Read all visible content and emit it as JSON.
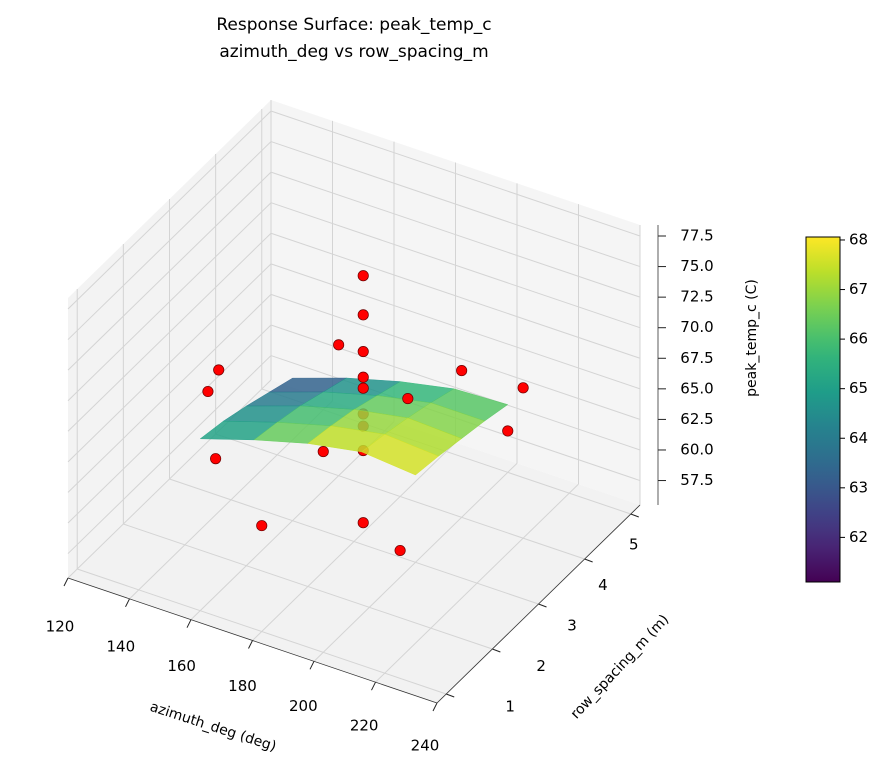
{
  "chart_data": {
    "type": "surface3d",
    "title": "Response Surface: peak_temp_c",
    "subtitle": "azimuth_deg vs row_spacing_m",
    "xlabel": "azimuth_deg (deg)",
    "ylabel": "row_spacing_m (m)",
    "zlabel": "peak_temp_c (C)",
    "xlim": [
      120,
      240
    ],
    "xticks": [
      120,
      140,
      160,
      180,
      200,
      220,
      240
    ],
    "ylim": [
      0.8,
      5.2
    ],
    "yticks": [
      1,
      2,
      3,
      4,
      5
    ],
    "zlim": [
      55.5,
      78.4
    ],
    "zticks": [
      57.5,
      {
        "value": 60,
        "label": "60.0"
      },
      62.5,
      {
        "value": 65,
        "label": "65.0"
      },
      67.5,
      {
        "value": 70,
        "label": "70.0"
      },
      72.5,
      {
        "value": 75,
        "label": "75.0"
      },
      77.5
    ],
    "grid": true,
    "pane_color": "#f2f2f2",
    "grid_color": "#d4d4d4",
    "surface": {
      "x": [
        145,
        162.5,
        180,
        197.5,
        215
      ],
      "y": [
        2,
        2.5,
        3,
        3.5,
        4
      ],
      "z": [
        [
          64.6,
          66.0,
          67.2,
          68.0,
          67.6
        ],
        [
          64.2,
          65.6,
          66.8,
          67.6,
          67.3
        ],
        [
          63.6,
          65.1,
          66.3,
          67.1,
          66.9
        ],
        [
          62.9,
          64.4,
          65.6,
          66.5,
          66.5
        ],
        [
          62.2,
          63.7,
          64.9,
          65.8,
          66.0
        ]
      ],
      "colormap": "viridis",
      "alpha": 0.85
    },
    "scatter": {
      "x": [
        180,
        180,
        180,
        180,
        180,
        180,
        180,
        180,
        180,
        160,
        130,
        140,
        150,
        165,
        170,
        190,
        210,
        200,
        220,
        230
      ],
      "y": [
        3.2,
        3.2,
        3.2,
        3.2,
        3.2,
        3.2,
        3.2,
        3.2,
        3.2,
        4,
        3.4,
        2.5,
        2,
        2,
        3,
        3.5,
        2,
        4,
        4,
        3
      ],
      "z": [
        76.5,
        73.3,
        70.3,
        68.2,
        67.3,
        65.2,
        64.2,
        62.2,
        56.3,
        66.2,
        63.8,
        66.2,
        63.4,
        59.2,
        62.0,
        66.2,
        61.0,
        67.5,
        67.8,
        68.8
      ],
      "color": "#ff0000",
      "edgecolor": "#6e0000"
    },
    "colorbar": {
      "clim": [
        61.1,
        68.06
      ],
      "ticks": [
        62,
        63,
        64,
        65,
        66,
        67,
        68
      ]
    }
  }
}
